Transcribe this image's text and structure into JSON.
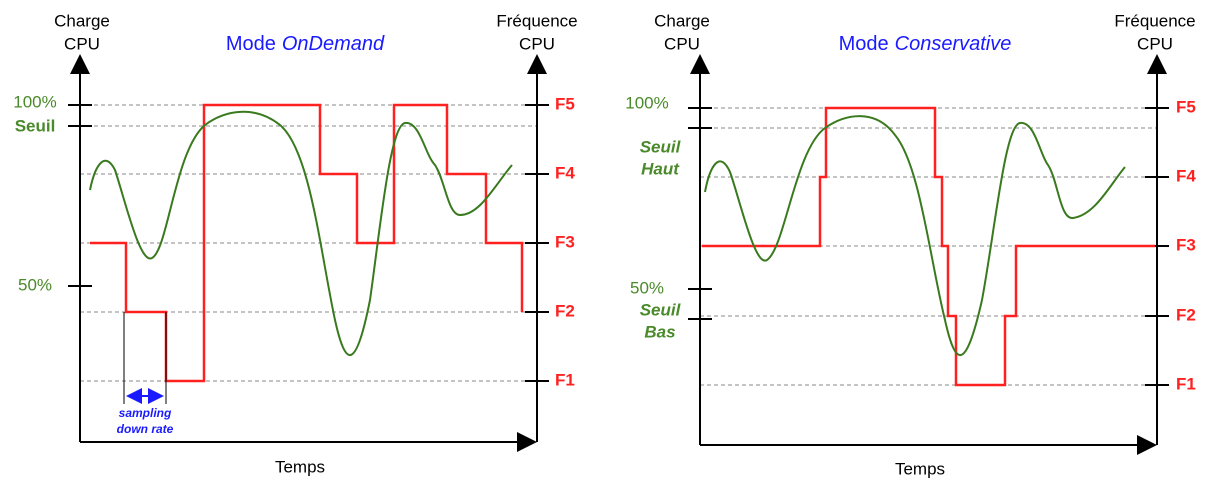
{
  "left": {
    "title": {
      "text": "Mode",
      "mode": "OnDemand"
    },
    "y_label": [
      "Charge",
      "CPU"
    ],
    "y2_label": [
      "Fréquence",
      "CPU"
    ],
    "x_label": "Temps",
    "load_labels": [
      "100%",
      "Seuil",
      "50%"
    ],
    "freq_labels": [
      "F5",
      "F4",
      "F3",
      "F2",
      "F1"
    ],
    "annotation": [
      "sampling",
      "down rate"
    ]
  },
  "right": {
    "title": {
      "text": "Mode",
      "mode": "Conservative"
    },
    "y_label": [
      "Charge",
      "CPU"
    ],
    "y2_label": [
      "Fréquence",
      "CPU"
    ],
    "x_label": "Temps",
    "load_labels": [
      "100%",
      "Seuil",
      "Haut",
      "50%",
      "Seuil",
      "Bas"
    ],
    "freq_labels": [
      "F5",
      "F4",
      "F3",
      "F2",
      "F1"
    ]
  }
}
